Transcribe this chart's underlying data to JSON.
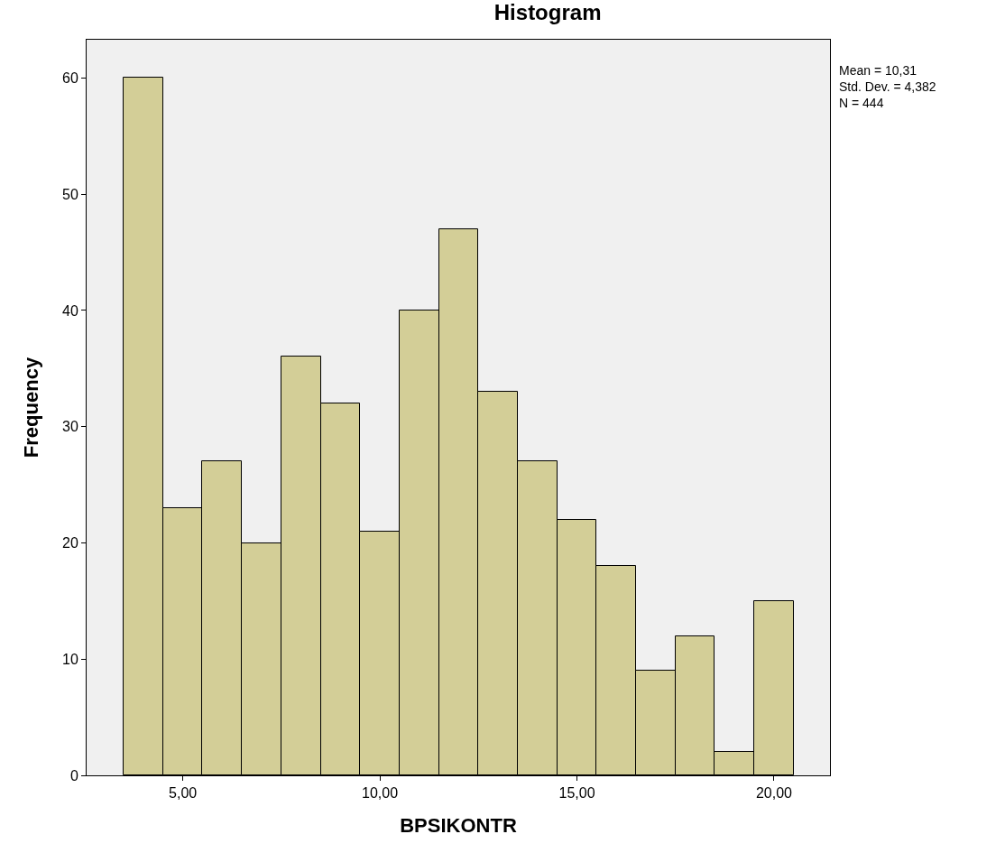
{
  "chart_data": {
    "type": "histogram",
    "title": "Histogram",
    "xlabel": "BPSIKONTR",
    "ylabel": "Frequency",
    "bins": [
      3.5,
      4.5,
      5.5,
      6.5,
      7.5,
      8.5,
      9.5,
      10.5,
      11.5,
      12.5,
      13.5,
      14.5,
      15.5,
      16.5,
      17.5,
      18.5,
      19.5,
      20.5
    ],
    "values": [
      60,
      23,
      27,
      20,
      36,
      32,
      21,
      40,
      47,
      33,
      27,
      22,
      18,
      9,
      12,
      2,
      15
    ],
    "color": "#d3ce97",
    "xlim": [
      2.56,
      21.42
    ],
    "xticks": [
      {
        "value": 5,
        "label": "5,00"
      },
      {
        "value": 10,
        "label": "10,00"
      },
      {
        "value": 15,
        "label": "15,00"
      },
      {
        "value": 20,
        "label": "20,00"
      }
    ],
    "ylim": [
      0,
      63.3
    ],
    "yticks": [
      0,
      10,
      20,
      30,
      40,
      50,
      60
    ],
    "grid": false,
    "annotations": [
      "Mean = 10,31",
      "Std. Dev. = 4,382",
      "N = 444"
    ]
  }
}
